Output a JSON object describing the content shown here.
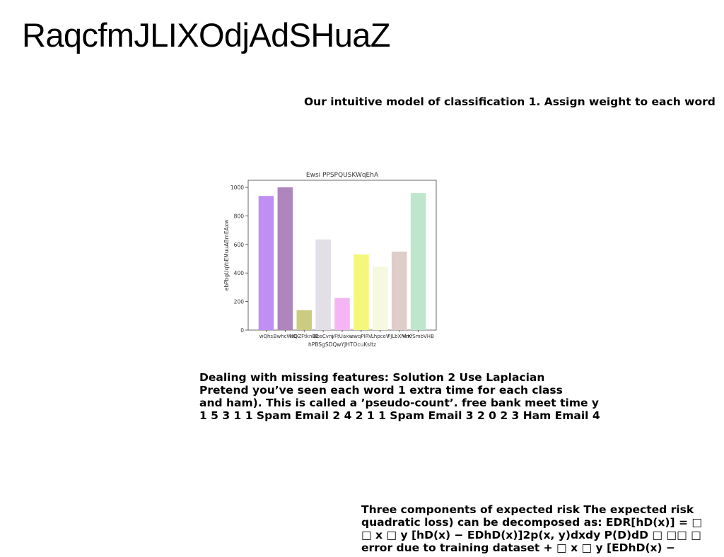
{
  "title": "RaqcfmJLIXOdjAdSHuaZ",
  "subtitle": "Our intuitive model of classification 1. Assign weight to each word",
  "paragraph1": [
    "Dealing with missing features: Solution 2 Use Laplacian",
    "Pretend you’ve seen each word 1 extra time for each class",
    "and ham). This is called a ’pseudo-count’. free bank meet time y",
    "1 5 3 1 1 Spam Email 2 4 2 1 1 Spam Email 3 2 0 2 3 Ham Email 4"
  ],
  "paragraph2": [
    "Three components of expected risk The expected risk",
    "quadratic loss) can be decomposed as: EDR[hD(x)] = □",
    "□ x □ y [hD(x) − EDhD(x)]2p(x, y)dxdy P(D)dD □ □□ □",
    "error due to training dataset + □ x □ y [EDhD(x) −"
  ],
  "chart_data": {
    "type": "bar",
    "title": "Ewsi PPSPQUSKWqEhA",
    "xlabel": "hPBSgSDQwYJHTOcuKsltz",
    "ylabel": "ebPbgUqYoEMuuABmEAxw",
    "ylim": [
      0,
      1050
    ],
    "yticks": [
      0,
      200,
      400,
      600,
      800,
      1000
    ],
    "categories": [
      "wQhs",
      "BwhcWIQ",
      "kiQZFtknBE",
      "BbsCvnj",
      "yFtUaxw",
      "uwqPIRV",
      "LhpceV",
      "PJLbXNkK",
      "VmfSmbVHB"
    ],
    "values": [
      940,
      1000,
      140,
      635,
      225,
      530,
      445,
      550,
      960
    ],
    "colors": [
      "#bf8ff4",
      "#af85bd",
      "#cccb82",
      "#e2dfe6",
      "#f5b5f4",
      "#f5f77a",
      "#f6f8df",
      "#dfcdca",
      "#bde6cd"
    ]
  }
}
